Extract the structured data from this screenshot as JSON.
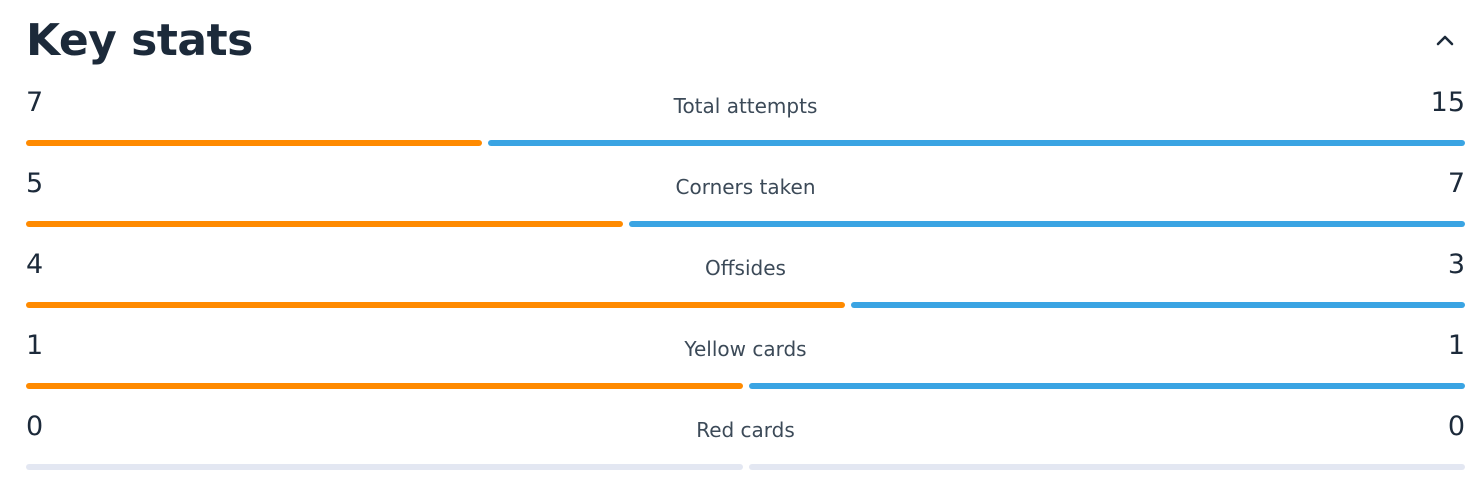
{
  "title": "Key stats",
  "collapse_icon": "chevron-up-icon",
  "colors": {
    "home": "#ff8a00",
    "away": "#3aa4e3",
    "empty": "#e3e7f2"
  },
  "stats": [
    {
      "label": "Total attempts",
      "home": "7",
      "away": "15"
    },
    {
      "label": "Corners taken",
      "home": "5",
      "away": "7"
    },
    {
      "label": "Offsides",
      "home": "4",
      "away": "3"
    },
    {
      "label": "Yellow cards",
      "home": "1",
      "away": "1"
    },
    {
      "label": "Red cards",
      "home": "0",
      "away": "0"
    }
  ]
}
